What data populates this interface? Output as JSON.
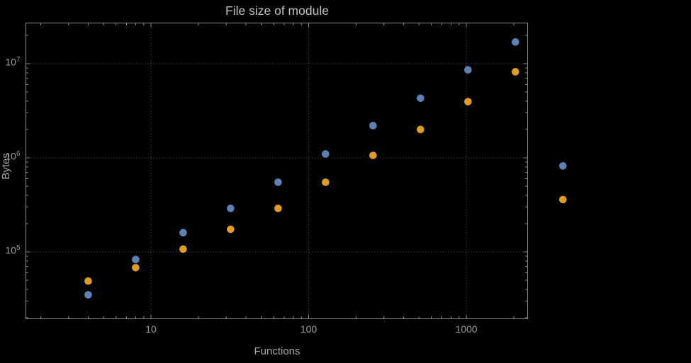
{
  "colors": {
    "background": "#000000",
    "frame": "#8a8a8a",
    "grid": "#5f5f5f",
    "tick_label": "#9c9c9c",
    "axis_label": "#a6a6a6",
    "title": "#c2c2c2"
  },
  "chart_data": {
    "type": "scatter",
    "title": "File size of module",
    "xlabel": "Functions",
    "ylabel": "Bytes",
    "x_scale": "log",
    "y_scale": "log",
    "grid": "dotted",
    "legend": "none",
    "xlim": [
      1.7,
      2500
    ],
    "ylim": [
      20000,
      27000000
    ],
    "x": [
      4,
      8,
      16,
      32,
      64,
      128,
      256,
      512,
      1024,
      2048,
      4096
    ],
    "series": [
      {
        "name": "series-1-blue",
        "color": "#5E81B5",
        "values": [
          35000,
          83000,
          160000,
          290000,
          550000,
          1100000,
          2200000,
          4300000,
          8600000,
          17000000,
          820000
        ]
      },
      {
        "name": "series-2-orange",
        "color": "#E19C24",
        "values": [
          49000,
          68000,
          107000,
          174000,
          290000,
          550000,
          1060000,
          2000000,
          3950000,
          8200000,
          360000
        ]
      }
    ],
    "x_ticks": [
      {
        "value": 10,
        "label": "10"
      },
      {
        "value": 100,
        "label": "100"
      },
      {
        "value": 1000,
        "label": "1000"
      }
    ],
    "y_ticks": [
      {
        "value": 100000,
        "label": "10^5"
      },
      {
        "value": 1000000,
        "label": "10^6"
      },
      {
        "value": 10000000,
        "label": "10^7"
      }
    ]
  }
}
